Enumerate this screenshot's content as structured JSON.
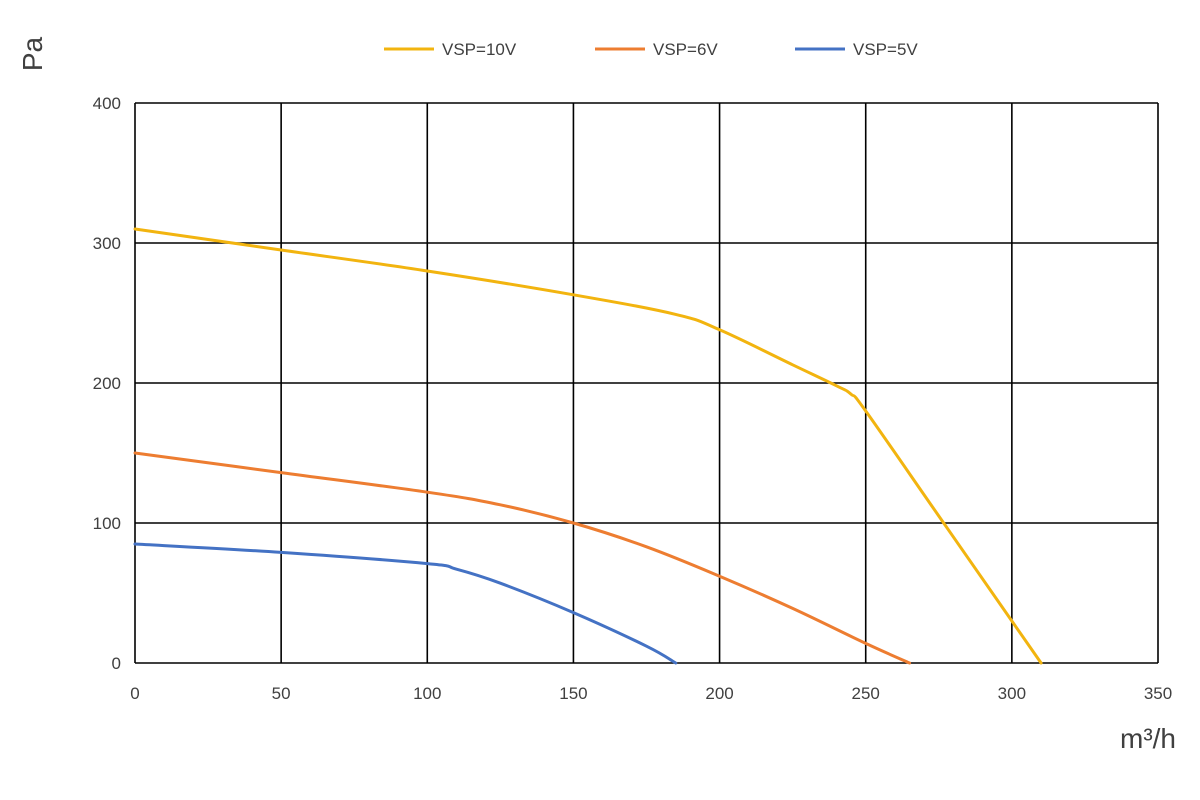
{
  "chart_data": {
    "type": "line",
    "xlabel": "m³/h",
    "ylabel": "Pa",
    "xlim": [
      0,
      350
    ],
    "ylim": [
      0,
      400
    ],
    "xticks": [
      0,
      50,
      100,
      150,
      200,
      250,
      300,
      350
    ],
    "yticks": [
      0,
      100,
      200,
      300,
      400
    ],
    "grid": true,
    "legend_position": "top",
    "series": [
      {
        "name": "VSP=10V",
        "color": "#F2B40F",
        "x": [
          0,
          50,
          100,
          150,
          185,
          200,
          225,
          240,
          245,
          250,
          275,
          300,
          310
        ],
        "y": [
          310,
          295,
          280,
          263,
          249,
          238,
          213,
          198,
          192,
          180,
          105,
          30,
          0
        ]
      },
      {
        "name": "VSP=6V",
        "color": "#ED7D31",
        "x": [
          0,
          50,
          100,
          125,
          150,
          175,
          200,
          225,
          250,
          265
        ],
        "y": [
          150,
          136,
          122,
          113,
          100,
          83,
          62,
          39,
          14,
          0
        ]
      },
      {
        "name": "VSP=5V",
        "color": "#4472C4",
        "x": [
          0,
          50,
          100,
          110,
          125,
          150,
          175,
          185
        ],
        "y": [
          85,
          79,
          71,
          67,
          57,
          36,
          12,
          0
        ]
      }
    ]
  }
}
